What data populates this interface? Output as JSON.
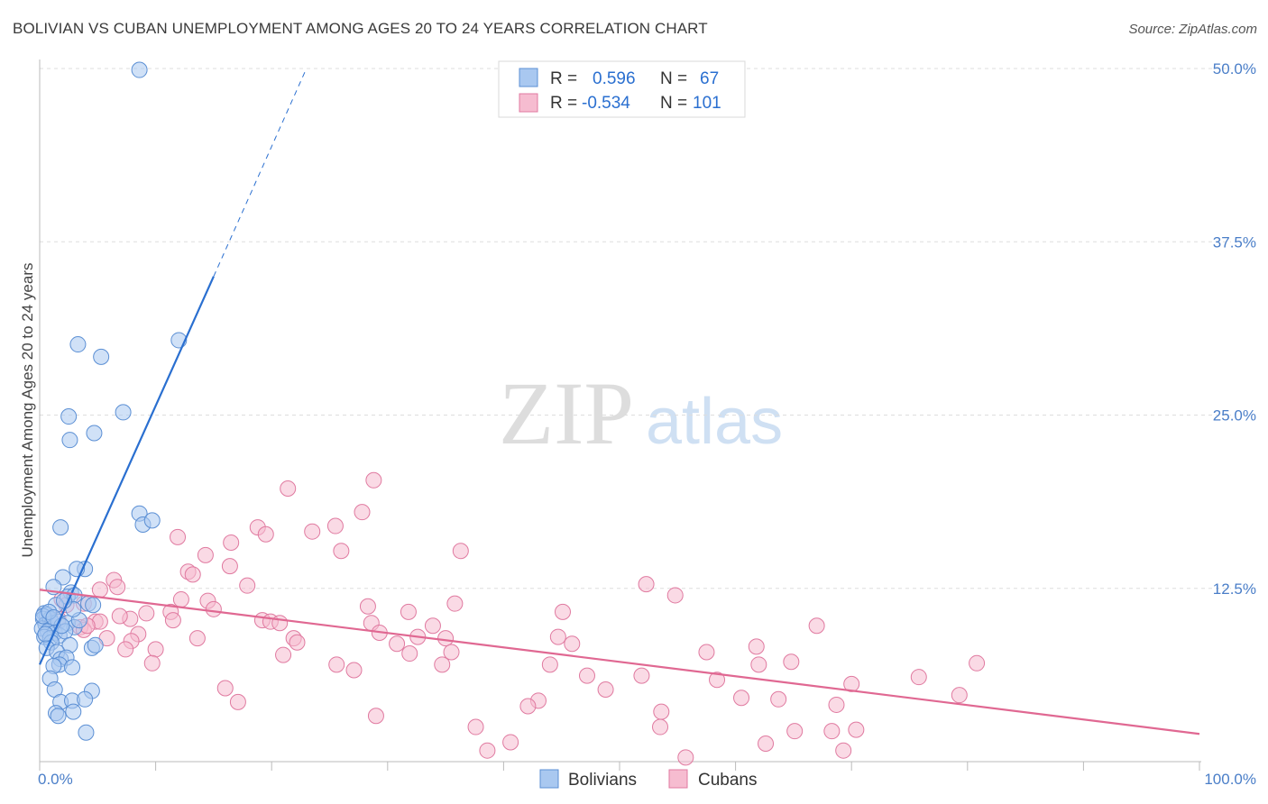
{
  "title": "BOLIVIAN VS CUBAN UNEMPLOYMENT AMONG AGES 20 TO 24 YEARS CORRELATION CHART",
  "source": "Source: ZipAtlas.com",
  "watermark": {
    "zip": "ZIP",
    "atlas": "atlas"
  },
  "colors": {
    "bolivians_fill": "#a9c8f0",
    "bolivians_stroke": "#5b8fd4",
    "bolivians_line": "#2a6fd0",
    "cubans_fill": "#f6bcd0",
    "cubans_stroke": "#e07aa0",
    "cubans_line": "#e06892",
    "tick_text": "#4a7ec8",
    "grid": "#dddddd"
  },
  "legend": {
    "rows": [
      {
        "r_label": "R =",
        "r_value": "0.596",
        "n_label": "N =",
        "n_value": "67"
      },
      {
        "r_label": "R =",
        "r_value": "-0.534",
        "n_label": "N =",
        "n_value": "101"
      }
    ]
  },
  "chart_data": {
    "type": "scatter",
    "title": "BOLIVIAN VS CUBAN UNEMPLOYMENT AMONG AGES 20 TO 24 YEARS CORRELATION CHART",
    "xlabel": "",
    "ylabel": "Unemployment Among Ages 20 to 24 years",
    "xlim": [
      0,
      100
    ],
    "ylim": [
      0,
      50
    ],
    "x_tick_labels": [
      "0.0%",
      "100.0%"
    ],
    "y_ticks": [
      12.5,
      25.0,
      37.5,
      50.0
    ],
    "y_tick_labels": [
      "12.5%",
      "25.0%",
      "37.5%",
      "50.0%"
    ],
    "grid": true,
    "legend_position": "top-center",
    "series": [
      {
        "name": "Bolivians",
        "r": 0.596,
        "n": 67,
        "trend": {
          "x0": 0.0,
          "y0": 7.0,
          "x1": 15.0,
          "y1": 35.0,
          "dash_to_x": 23.0,
          "dash_to_y": 50.0
        },
        "points": [
          [
            8.6,
            49.9
          ],
          [
            3.3,
            30.1
          ],
          [
            5.3,
            29.2
          ],
          [
            12.0,
            30.4
          ],
          [
            2.5,
            24.9
          ],
          [
            2.6,
            23.2
          ],
          [
            4.7,
            23.7
          ],
          [
            7.2,
            25.2
          ],
          [
            1.8,
            16.9
          ],
          [
            8.6,
            17.9
          ],
          [
            8.9,
            17.1
          ],
          [
            9.7,
            17.4
          ],
          [
            3.9,
            13.9
          ],
          [
            3.2,
            13.9
          ],
          [
            2.0,
            13.3
          ],
          [
            1.2,
            12.6
          ],
          [
            2.7,
            12.2
          ],
          [
            2.4,
            11.9
          ],
          [
            3.0,
            12.0
          ],
          [
            4.2,
            11.4
          ],
          [
            4.6,
            11.3
          ],
          [
            1.4,
            11.3
          ],
          [
            0.4,
            10.7
          ],
          [
            0.6,
            10.6
          ],
          [
            0.3,
            10.3
          ],
          [
            0.5,
            9.9
          ],
          [
            0.9,
            10.3
          ],
          [
            1.1,
            10.0
          ],
          [
            1.6,
            10.1
          ],
          [
            2.4,
            10.0
          ],
          [
            3.0,
            9.7
          ],
          [
            3.4,
            10.2
          ],
          [
            0.2,
            9.6
          ],
          [
            0.7,
            9.4
          ],
          [
            1.3,
            9.3
          ],
          [
            0.4,
            9.0
          ],
          [
            0.9,
            8.9
          ],
          [
            1.7,
            9.1
          ],
          [
            2.2,
            9.4
          ],
          [
            1.0,
            8.6
          ],
          [
            0.6,
            8.2
          ],
          [
            2.6,
            8.4
          ],
          [
            4.5,
            8.2
          ],
          [
            4.8,
            8.4
          ],
          [
            1.5,
            7.9
          ],
          [
            1.8,
            7.4
          ],
          [
            2.3,
            7.5
          ],
          [
            1.7,
            7.0
          ],
          [
            2.8,
            6.8
          ],
          [
            1.2,
            6.9
          ],
          [
            0.9,
            6.0
          ],
          [
            1.3,
            5.2
          ],
          [
            4.5,
            5.1
          ],
          [
            1.8,
            4.3
          ],
          [
            2.8,
            4.4
          ],
          [
            3.9,
            4.5
          ],
          [
            1.4,
            3.5
          ],
          [
            1.6,
            3.3
          ],
          [
            2.9,
            3.6
          ],
          [
            4.0,
            2.1
          ],
          [
            0.3,
            10.5
          ],
          [
            0.8,
            10.8
          ],
          [
            1.9,
            9.8
          ],
          [
            2.9,
            11.0
          ],
          [
            0.5,
            9.2
          ],
          [
            1.2,
            10.4
          ],
          [
            2.1,
            11.6
          ]
        ]
      },
      {
        "name": "Cubans",
        "r": -0.534,
        "n": 101,
        "trend": {
          "x0": 0.0,
          "y0": 12.4,
          "x1": 100.0,
          "y1": 2.0
        },
        "points": [
          [
            28.8,
            20.3
          ],
          [
            21.4,
            19.7
          ],
          [
            27.8,
            18.0
          ],
          [
            18.8,
            16.9
          ],
          [
            23.5,
            16.6
          ],
          [
            25.5,
            17.0
          ],
          [
            19.5,
            16.4
          ],
          [
            11.9,
            16.2
          ],
          [
            16.5,
            15.8
          ],
          [
            26.0,
            15.2
          ],
          [
            36.3,
            15.2
          ],
          [
            14.3,
            14.9
          ],
          [
            16.4,
            14.1
          ],
          [
            12.8,
            13.7
          ],
          [
            13.2,
            13.5
          ],
          [
            6.4,
            13.1
          ],
          [
            17.9,
            12.7
          ],
          [
            6.7,
            12.6
          ],
          [
            5.2,
            12.4
          ],
          [
            52.3,
            12.8
          ],
          [
            54.8,
            12.0
          ],
          [
            12.2,
            11.7
          ],
          [
            14.5,
            11.6
          ],
          [
            15.0,
            11.0
          ],
          [
            1.9,
            11.7
          ],
          [
            2.3,
            11.3
          ],
          [
            3.8,
            11.4
          ],
          [
            35.8,
            11.4
          ],
          [
            28.3,
            11.2
          ],
          [
            31.8,
            10.8
          ],
          [
            45.1,
            10.8
          ],
          [
            9.2,
            10.7
          ],
          [
            11.3,
            10.8
          ],
          [
            7.8,
            10.3
          ],
          [
            4.8,
            10.1
          ],
          [
            5.2,
            10.1
          ],
          [
            6.9,
            10.5
          ],
          [
            1.6,
            10.3
          ],
          [
            19.2,
            10.2
          ],
          [
            19.9,
            10.1
          ],
          [
            20.7,
            10.0
          ],
          [
            28.6,
            10.0
          ],
          [
            33.9,
            9.8
          ],
          [
            67.0,
            9.8
          ],
          [
            3.5,
            9.7
          ],
          [
            3.8,
            9.5
          ],
          [
            8.5,
            9.2
          ],
          [
            13.6,
            8.9
          ],
          [
            5.8,
            8.9
          ],
          [
            7.9,
            8.7
          ],
          [
            21.9,
            8.9
          ],
          [
            22.2,
            8.6
          ],
          [
            35.0,
            8.9
          ],
          [
            32.6,
            9.0
          ],
          [
            44.7,
            9.0
          ],
          [
            45.9,
            8.5
          ],
          [
            30.8,
            8.5
          ],
          [
            61.8,
            8.3
          ],
          [
            7.4,
            8.1
          ],
          [
            10.0,
            8.1
          ],
          [
            31.9,
            7.8
          ],
          [
            35.5,
            7.9
          ],
          [
            57.5,
            7.9
          ],
          [
            21.0,
            7.7
          ],
          [
            9.7,
            7.1
          ],
          [
            25.6,
            7.0
          ],
          [
            27.1,
            6.6
          ],
          [
            34.7,
            7.0
          ],
          [
            44.0,
            7.0
          ],
          [
            62.0,
            7.0
          ],
          [
            64.8,
            7.2
          ],
          [
            80.8,
            7.1
          ],
          [
            47.2,
            6.2
          ],
          [
            51.9,
            6.2
          ],
          [
            58.4,
            5.9
          ],
          [
            75.8,
            6.1
          ],
          [
            70.0,
            5.6
          ],
          [
            16.0,
            5.3
          ],
          [
            48.8,
            5.2
          ],
          [
            17.1,
            4.3
          ],
          [
            43.0,
            4.4
          ],
          [
            60.5,
            4.6
          ],
          [
            63.7,
            4.5
          ],
          [
            68.7,
            4.1
          ],
          [
            79.3,
            4.8
          ],
          [
            42.1,
            4.0
          ],
          [
            53.6,
            3.6
          ],
          [
            29.0,
            3.3
          ],
          [
            37.6,
            2.5
          ],
          [
            53.5,
            2.5
          ],
          [
            65.1,
            2.2
          ],
          [
            68.3,
            2.2
          ],
          [
            70.4,
            2.3
          ],
          [
            40.6,
            1.4
          ],
          [
            62.6,
            1.3
          ],
          [
            38.6,
            0.8
          ],
          [
            69.3,
            0.8
          ],
          [
            55.7,
            0.3
          ],
          [
            4.1,
            9.8
          ],
          [
            11.5,
            10.2
          ],
          [
            29.3,
            9.3
          ]
        ]
      }
    ]
  },
  "bottom_legend": {
    "bolivians": "Bolivians",
    "cubans": "Cubans"
  }
}
